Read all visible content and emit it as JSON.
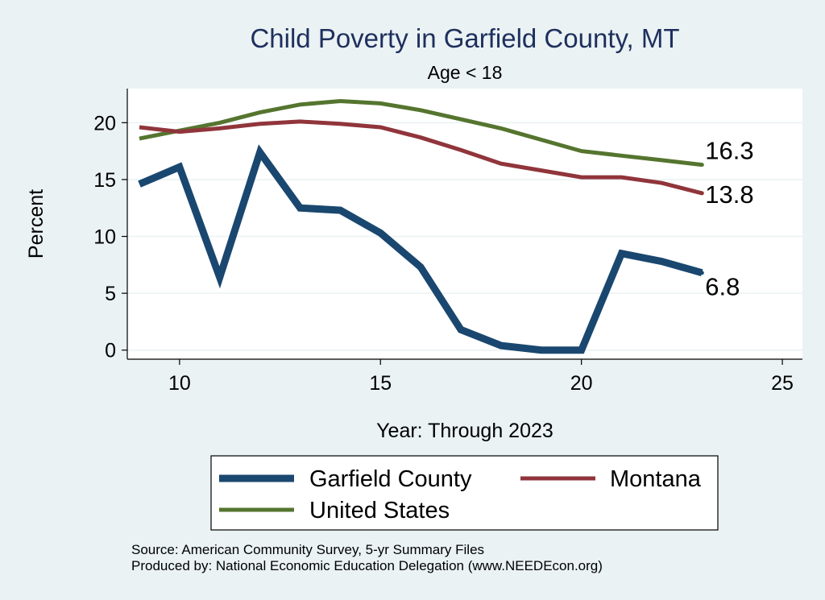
{
  "chart_data": {
    "type": "line",
    "title": "Child Poverty in Garfield County, MT",
    "subtitle": "Age < 18",
    "xlabel": "Year: Through 2023",
    "ylabel": "Percent",
    "xlim": [
      8.7,
      25.5
    ],
    "ylim": [
      -0.8,
      23
    ],
    "xticks": [
      10,
      15,
      20,
      25
    ],
    "yticks": [
      0,
      5,
      10,
      15,
      20
    ],
    "grid": true,
    "x": [
      9,
      10,
      11,
      12,
      13,
      14,
      15,
      16,
      17,
      18,
      19,
      20,
      21,
      22,
      23
    ],
    "series": [
      {
        "name": "Garfield County",
        "color": "#1a476f",
        "values": [
          14.6,
          16.1,
          6.4,
          17.4,
          12.5,
          12.3,
          10.3,
          7.3,
          1.8,
          0.4,
          0.0,
          0.0,
          8.5,
          7.8,
          6.8
        ],
        "end_label": "6.8"
      },
      {
        "name": "Montana",
        "color": "#90353b",
        "values": [
          19.6,
          19.2,
          19.5,
          19.9,
          20.1,
          19.9,
          19.6,
          18.7,
          17.6,
          16.4,
          15.8,
          15.2,
          15.2,
          14.7,
          13.8
        ],
        "end_label": "13.8"
      },
      {
        "name": "United States",
        "color": "#55752f",
        "values": [
          18.6,
          19.3,
          20.0,
          20.9,
          21.6,
          21.9,
          21.7,
          21.1,
          20.3,
          19.5,
          18.5,
          17.5,
          17.1,
          16.7,
          16.3
        ],
        "end_label": "16.3"
      }
    ],
    "legend": {
      "placement": "bottom",
      "entries": [
        "Garfield County",
        "Montana",
        "United States"
      ]
    },
    "notes": [
      "Source: American Community Survey, 5-yr Summary Files",
      "Produced by: National Economic Education Delegation (www.NEEDEcon.org)"
    ]
  }
}
